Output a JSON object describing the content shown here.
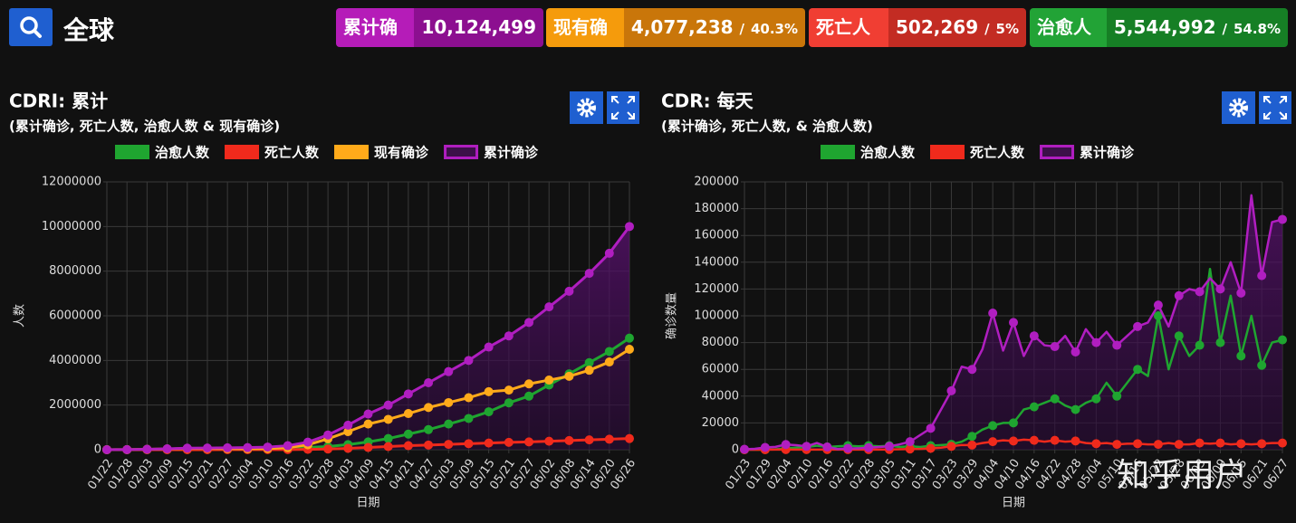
{
  "header": {
    "place": "全球",
    "stats": [
      {
        "label": "累计确诊",
        "value": "10,124,499"
      },
      {
        "label": "现有确诊",
        "value": "4,077,238",
        "percent": "40.3%"
      },
      {
        "label": "死亡人数",
        "value": "502,269",
        "percent": "5%"
      },
      {
        "label": "治愈人数",
        "value": "5,544,992",
        "percent": "54.8%"
      }
    ]
  },
  "watermark": "知乎用户",
  "chart_data": [
    {
      "type": "line",
      "title": "CDRI: 累计",
      "subtitle": "(累计确诊, 死亡人数, 治愈人数 & 现有确诊)",
      "x_label": "日期",
      "y_label": "人数",
      "categories": [
        "01/22",
        "01/28",
        "02/03",
        "02/09",
        "02/15",
        "02/21",
        "02/27",
        "03/04",
        "03/10",
        "03/16",
        "03/22",
        "03/28",
        "04/03",
        "04/09",
        "04/15",
        "04/21",
        "04/27",
        "05/03",
        "05/09",
        "05/15",
        "05/21",
        "05/27",
        "06/02",
        "06/08",
        "06/14",
        "06/20",
        "06/26"
      ],
      "ylim": [
        0,
        12000000
      ],
      "yticks": [
        0,
        2000000,
        4000000,
        6000000,
        8000000,
        10000000,
        12000000
      ],
      "grid": true,
      "series": [
        {
          "name": "治愈人数",
          "color": "#1fa530",
          "values": [
            0,
            100,
            1000,
            3000,
            10000,
            20000,
            35000,
            50000,
            65000,
            80000,
            100000,
            140000,
            230000,
            350000,
            500000,
            700000,
            900000,
            1150000,
            1400000,
            1700000,
            2100000,
            2400000,
            2900000,
            3400000,
            3900000,
            4400000,
            5000000
          ]
        },
        {
          "name": "死亡人数",
          "color": "#f02a1c",
          "values": [
            0,
            100,
            400,
            900,
            1700,
            2300,
            2900,
            3300,
            4300,
            7500,
            15000,
            30000,
            60000,
            100000,
            140000,
            180000,
            210000,
            240000,
            270000,
            300000,
            330000,
            350000,
            380000,
            410000,
            440000,
            470000,
            500000
          ]
        },
        {
          "name": "现有确诊",
          "color": "#ffaa1a",
          "values": [
            600,
            6000,
            19000,
            36000,
            57000,
            55000,
            46000,
            42000,
            50000,
            90000,
            220000,
            490000,
            810000,
            1150000,
            1360000,
            1620000,
            1890000,
            2110000,
            2330000,
            2600000,
            2670000,
            2950000,
            3120000,
            3290000,
            3560000,
            3930000,
            4500000
          ]
        },
        {
          "name": "累计确诊",
          "color": "#b01ec0",
          "area": true,
          "values": [
            600,
            6000,
            20000,
            40000,
            69000,
            77000,
            84000,
            95000,
            119000,
            180000,
            340000,
            660000,
            1100000,
            1600000,
            2000000,
            2500000,
            3000000,
            3500000,
            4000000,
            4600000,
            5100000,
            5700000,
            6400000,
            7100000,
            7900000,
            8800000,
            10000000
          ]
        }
      ]
    },
    {
      "type": "line",
      "title": "CDR: 每天",
      "subtitle": "(累计确诊, 死亡人数, & 治愈人数)",
      "x_label": "日期",
      "y_label": "确诊数量",
      "categories": [
        "01/23",
        null,
        "01/29",
        null,
        "02/04",
        null,
        "02/10",
        null,
        "02/16",
        null,
        "02/22",
        null,
        "02/28",
        null,
        "03/05",
        null,
        "03/11",
        null,
        "03/17",
        null,
        "03/23",
        null,
        "03/29",
        null,
        "04/04",
        null,
        "04/10",
        null,
        "04/16",
        null,
        "04/22",
        null,
        "04/28",
        null,
        "05/04",
        null,
        "05/10",
        null,
        "05/16",
        null,
        "05/22",
        null,
        "05/28",
        null,
        "06/03",
        null,
        "06/09",
        null,
        "06/15",
        null,
        "06/21",
        null,
        "06/27"
      ],
      "ylim": [
        0,
        200000
      ],
      "yticks": [
        0,
        20000,
        40000,
        60000,
        80000,
        100000,
        120000,
        140000,
        160000,
        180000,
        200000
      ],
      "grid": true,
      "series": [
        {
          "name": "治愈人数",
          "color": "#1fa530",
          "values": [
            0,
            0,
            100,
            300,
            1000,
            1500,
            2000,
            3000,
            2000,
            2500,
            3000,
            2500,
            3000,
            2500,
            3000,
            2000,
            2500,
            2000,
            3000,
            3500,
            4000,
            6000,
            10000,
            15000,
            18000,
            20000,
            20000,
            30000,
            32000,
            35000,
            38000,
            33000,
            30000,
            35000,
            38000,
            50000,
            40000,
            50000,
            60000,
            55000,
            100000,
            60000,
            85000,
            70000,
            78000,
            135000,
            80000,
            115000,
            70000,
            100000,
            63000,
            80000,
            82000
          ]
        },
        {
          "name": "死亡人数",
          "color": "#f02a1c",
          "values": [
            0,
            0,
            40,
            50,
            70,
            90,
            100,
            120,
            100,
            120,
            100,
            100,
            100,
            100,
            200,
            300,
            500,
            600,
            1000,
            1500,
            2500,
            3500,
            3500,
            5000,
            6000,
            7000,
            6500,
            7500,
            7000,
            6000,
            7000,
            6000,
            6500,
            5000,
            4500,
            5000,
            4000,
            4500,
            4500,
            4000,
            4000,
            5000,
            4000,
            4000,
            5000,
            4500,
            5000,
            4000,
            4500,
            4000,
            4500,
            5000,
            5000
          ]
        },
        {
          "name": "累计确诊",
          "color": "#b01ec0",
          "area": true,
          "values": [
            300,
            700,
            1700,
            2100,
            3900,
            3400,
            2500,
            5000,
            2000,
            500,
            1000,
            1000,
            1500,
            2000,
            2500,
            4000,
            6000,
            11000,
            16000,
            30000,
            44000,
            62000,
            60000,
            75000,
            102000,
            74000,
            95000,
            70000,
            85000,
            78000,
            77000,
            85000,
            73000,
            90000,
            80000,
            88000,
            78000,
            85000,
            92000,
            95000,
            108000,
            92000,
            115000,
            120000,
            118000,
            128000,
            120000,
            140000,
            117000,
            190000,
            130000,
            170000,
            172000
          ]
        }
      ]
    }
  ]
}
